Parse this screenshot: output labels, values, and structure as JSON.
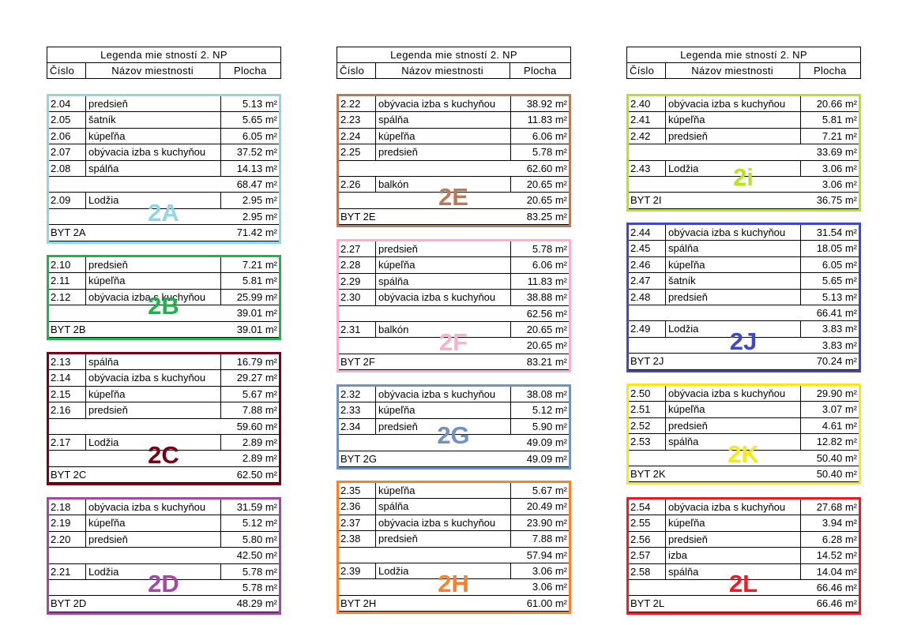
{
  "legend": {
    "title": "Legenda mie stností 2. NP",
    "col_number": "Číslo",
    "col_name": "Názov miestnosti",
    "col_area": "Plocha"
  },
  "apartments": [
    {
      "id": "2A",
      "code": "BYT 2A",
      "label": "2A",
      "color": "#92d5e6",
      "rows": [
        {
          "type": "room",
          "num": "2.04",
          "name": "predsieň",
          "area": "5.13 m²"
        },
        {
          "type": "room",
          "num": "2.05",
          "name": "šatník",
          "area": "5.65 m²"
        },
        {
          "type": "room",
          "num": "2.06",
          "name": "kúpeľňa",
          "area": "6.05 m²"
        },
        {
          "type": "room",
          "num": "2.07",
          "name": "obývacia izba s kuchyňou",
          "area": "37.52 m²"
        },
        {
          "type": "room",
          "num": "2.08",
          "name": "spálňa",
          "area": "14.13 m²"
        },
        {
          "type": "subtotal",
          "area": "68.47 m²"
        },
        {
          "type": "room",
          "num": "2.09",
          "name": "Lodžia",
          "area": "2.95 m²"
        },
        {
          "type": "subtotal",
          "area": "2.95 m²"
        },
        {
          "type": "total",
          "area": "71.42 m²"
        }
      ]
    },
    {
      "id": "2B",
      "code": "BYT 2B",
      "label": "2B",
      "color": "#22b14c",
      "rows": [
        {
          "type": "room",
          "num": "2.10",
          "name": "predsieň",
          "area": "7.21 m²"
        },
        {
          "type": "room",
          "num": "2.11",
          "name": "kúpeľňa",
          "area": "5.81 m²"
        },
        {
          "type": "room",
          "num": "2.12",
          "name": "obývacia izba s kuchyňou",
          "area": "25.99 m²"
        },
        {
          "type": "subtotal",
          "area": "39.01 m²"
        },
        {
          "type": "total",
          "area": "39.01 m²"
        }
      ]
    },
    {
      "id": "2C",
      "code": "BYT 2C",
      "label": "2C",
      "color": "#7a0017",
      "rows": [
        {
          "type": "room",
          "num": "2.13",
          "name": "spálňa",
          "area": "16.79 m²"
        },
        {
          "type": "room",
          "num": "2.14",
          "name": "obývacia izba s kuchyňou",
          "area": "29.27 m²"
        },
        {
          "type": "room",
          "num": "2.15",
          "name": "kúpeľňa",
          "area": "5.67 m²"
        },
        {
          "type": "room",
          "num": "2.16",
          "name": "predsieň",
          "area": "7.88 m²"
        },
        {
          "type": "subtotal",
          "area": "59.60 m²"
        },
        {
          "type": "room",
          "num": "2.17",
          "name": "Lodžia",
          "area": "2.89 m²"
        },
        {
          "type": "subtotal",
          "area": "2.89 m²"
        },
        {
          "type": "total",
          "area": "62.50 m²"
        }
      ]
    },
    {
      "id": "2D",
      "code": "BYT 2D",
      "label": "2D",
      "color": "#a349a4",
      "rows": [
        {
          "type": "room",
          "num": "2.18",
          "name": "obývacia izba s kuchyňou",
          "area": "31.59 m²"
        },
        {
          "type": "room",
          "num": "2.19",
          "name": "kúpeľňa",
          "area": "5.12 m²"
        },
        {
          "type": "room",
          "num": "2.20",
          "name": "predsieň",
          "area": "5.80 m²"
        },
        {
          "type": "subtotal",
          "area": "42.50 m²"
        },
        {
          "type": "room",
          "num": "2.21",
          "name": "Lodžia",
          "area": "5.78 m²"
        },
        {
          "type": "subtotal",
          "area": "5.78 m²"
        },
        {
          "type": "total",
          "area": "48.29 m²"
        }
      ]
    },
    {
      "id": "2E",
      "code": "BYT 2E",
      "label": "2E",
      "color": "#b97a57",
      "rows": [
        {
          "type": "room",
          "num": "2.22",
          "name": "obývacia izba s kuchyňou",
          "area": "38.92 m²"
        },
        {
          "type": "room",
          "num": "2.23",
          "name": "spálňa",
          "area": "11.83 m²"
        },
        {
          "type": "room",
          "num": "2.24",
          "name": "kúpeľňa",
          "area": "6.06 m²"
        },
        {
          "type": "room",
          "num": "2.25",
          "name": "predsieň",
          "area": "5.78 m²"
        },
        {
          "type": "subtotal",
          "area": "62.60 m²"
        },
        {
          "type": "room",
          "num": "2.26",
          "name": "balkón",
          "area": "20.65 m²"
        },
        {
          "type": "subtotal",
          "area": "20.65 m²"
        },
        {
          "type": "total",
          "area": "83.25 m²"
        }
      ]
    },
    {
      "id": "2F",
      "code": "BYT 2F",
      "label": "2F",
      "color": "#ffaec9",
      "rows": [
        {
          "type": "room",
          "num": "2.27",
          "name": "predsieň",
          "area": "5.78 m²"
        },
        {
          "type": "room",
          "num": "2.28",
          "name": "kúpeľňa",
          "area": "6.06 m²"
        },
        {
          "type": "room",
          "num": "2.29",
          "name": "spálňa",
          "area": "11.83 m²"
        },
        {
          "type": "room",
          "num": "2.30",
          "name": "obývacia izba s kuchyňou",
          "area": "38.88 m²"
        },
        {
          "type": "subtotal",
          "area": "62.56 m²"
        },
        {
          "type": "room",
          "num": "2.31",
          "name": "balkón",
          "area": "20.65 m²"
        },
        {
          "type": "subtotal",
          "area": "20.65 m²"
        },
        {
          "type": "total",
          "area": "83.21 m²"
        }
      ]
    },
    {
      "id": "2G",
      "code": "BYT 2G",
      "label": "2G",
      "color": "#7092be",
      "rows": [
        {
          "type": "room",
          "num": "2.32",
          "name": "obývacia izba s kuchyňou",
          "area": "38.08 m²"
        },
        {
          "type": "room",
          "num": "2.33",
          "name": "kúpeľňa",
          "area": "5.12 m²"
        },
        {
          "type": "room",
          "num": "2.34",
          "name": "predsieň",
          "area": "5.90 m²"
        },
        {
          "type": "subtotal",
          "area": "49.09 m²"
        },
        {
          "type": "total",
          "area": "49.09 m²"
        }
      ]
    },
    {
      "id": "2H",
      "code": "BYT 2H",
      "label": "2H",
      "color": "#ff7f27",
      "rows": [
        {
          "type": "room",
          "num": "2.35",
          "name": "kúpeľňa",
          "area": "5.67 m²"
        },
        {
          "type": "room",
          "num": "2.36",
          "name": "spálňa",
          "area": "20.49 m²"
        },
        {
          "type": "room",
          "num": "2.37",
          "name": "obývacia izba s kuchyňou",
          "area": "23.90 m²"
        },
        {
          "type": "room",
          "num": "2.38",
          "name": "predsieň",
          "area": "7.88 m²"
        },
        {
          "type": "subtotal",
          "area": "57.94 m²"
        },
        {
          "type": "room",
          "num": "2.39",
          "name": "Lodžia",
          "area": "3.06 m²"
        },
        {
          "type": "subtotal",
          "area": "3.06 m²"
        },
        {
          "type": "total",
          "area": "61.00 m²"
        }
      ]
    },
    {
      "id": "2I",
      "code": "BYT 2I",
      "label": "2i",
      "color": "#b5e61d",
      "rows": [
        {
          "type": "room",
          "num": "2.40",
          "name": "obývacia izba s kuchyňou",
          "area": "20.66 m²"
        },
        {
          "type": "room",
          "num": "2.41",
          "name": "kúpeľňa",
          "area": "5.81 m²"
        },
        {
          "type": "room",
          "num": "2.42",
          "name": "predsieň",
          "area": "7.21 m²"
        },
        {
          "type": "subtotal",
          "area": "33.69 m²"
        },
        {
          "type": "room",
          "num": "2.43",
          "name": "Lodžia",
          "area": "3.06 m²"
        },
        {
          "type": "subtotal",
          "area": "3.06 m²"
        },
        {
          "type": "total",
          "area": "36.75 m²"
        }
      ]
    },
    {
      "id": "2J",
      "code": "BYT 2J",
      "label": "2J",
      "color": "#3f48cc",
      "rows": [
        {
          "type": "room",
          "num": "2.44",
          "name": "obývacia izba s kuchyňou",
          "area": "31.54 m²"
        },
        {
          "type": "room",
          "num": "2.45",
          "name": "spálňa",
          "area": "18.05 m²"
        },
        {
          "type": "room",
          "num": "2.46",
          "name": "kúpeľňa",
          "area": "6.05 m²"
        },
        {
          "type": "room",
          "num": "2.47",
          "name": "šatník",
          "area": "5.65 m²"
        },
        {
          "type": "room",
          "num": "2.48",
          "name": "predsieň",
          "area": "5.13 m²"
        },
        {
          "type": "subtotal",
          "area": "66.41 m²"
        },
        {
          "type": "room",
          "num": "2.49",
          "name": "Lodžia",
          "area": "3.83 m²"
        },
        {
          "type": "subtotal",
          "area": "3.83 m²"
        },
        {
          "type": "total",
          "area": "70.24 m²"
        }
      ]
    },
    {
      "id": "2K",
      "code": "BYT 2K",
      "label": "2K",
      "color": "#f5ea14",
      "rows": [
        {
          "type": "room",
          "num": "2.50",
          "name": "obývacia izba s kuchyňou",
          "area": "29.90 m²"
        },
        {
          "type": "room",
          "num": "2.51",
          "name": "kúpeľňa",
          "area": "3.07 m²"
        },
        {
          "type": "room",
          "num": "2.52",
          "name": "predsieň",
          "area": "4.61 m²"
        },
        {
          "type": "room",
          "num": "2.53",
          "name": "spálňa",
          "area": "12.82 m²"
        },
        {
          "type": "subtotal",
          "area": "50.40 m²"
        },
        {
          "type": "total",
          "area": "50.40 m²"
        }
      ]
    },
    {
      "id": "2L",
      "code": "BYT 2L",
      "label": "2L",
      "color": "#ed1c24",
      "rows": [
        {
          "type": "room",
          "num": "2.54",
          "name": "obývacia izba s kuchyňou",
          "area": "27.68 m²"
        },
        {
          "type": "room",
          "num": "2.55",
          "name": "kúpeľňa",
          "area": "3.94 m²"
        },
        {
          "type": "room",
          "num": "2.56",
          "name": "predsieň",
          "area": "6.28 m²"
        },
        {
          "type": "room",
          "num": "2.57",
          "name": "izba",
          "area": "14.52 m²"
        },
        {
          "type": "room",
          "num": "2.58",
          "name": "spálňa",
          "area": "14.04 m²"
        },
        {
          "type": "subtotal",
          "area": "66.46 m²"
        },
        {
          "type": "total",
          "area": "66.46 m²"
        }
      ]
    }
  ]
}
